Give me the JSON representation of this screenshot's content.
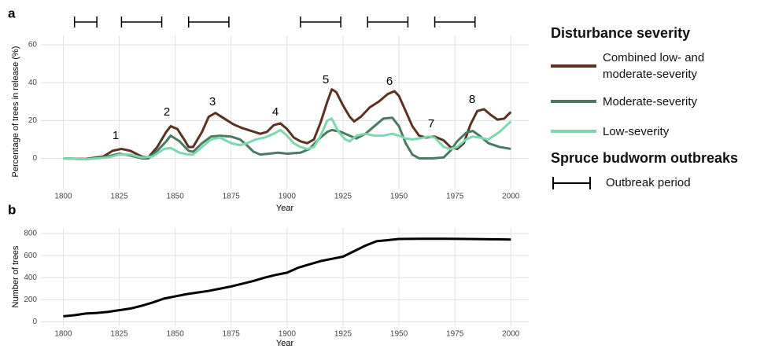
{
  "chart_data": [
    {
      "type": "line",
      "panel": "a",
      "x_label": "Year",
      "y_label": "Percentage of trees in release (%)",
      "xlim": [
        1790,
        2008
      ],
      "xticks": [
        1800,
        1825,
        1850,
        1875,
        1900,
        1925,
        1950,
        1975,
        2000
      ],
      "ylim": [
        -16,
        65
      ],
      "yticks": [
        0,
        20,
        40,
        60
      ],
      "grid": true,
      "legend_title": "Disturbance severity",
      "series": [
        {
          "name": "Combined low- and moderate-severity",
          "color": "#5a3222",
          "x": [
            1800,
            1810,
            1818,
            1822,
            1826,
            1830,
            1835,
            1838,
            1842,
            1846,
            1848,
            1851,
            1854,
            1856,
            1858,
            1862,
            1865,
            1868,
            1872,
            1876,
            1880,
            1884,
            1888,
            1891,
            1894,
            1897,
            1900,
            1903,
            1906,
            1909,
            1912,
            1915,
            1918,
            1920,
            1922,
            1925,
            1928,
            1930,
            1933,
            1937,
            1941,
            1945,
            1948,
            1950,
            1953,
            1956,
            1959,
            1962,
            1966,
            1970,
            1973,
            1976,
            1979,
            1982,
            1985,
            1988,
            1991,
            1994,
            1997,
            2000
          ],
          "values": [
            0,
            -0.3,
            1,
            4,
            5,
            4,
            1,
            0.5,
            6,
            14,
            17,
            15.5,
            10,
            6,
            6,
            14,
            22,
            24,
            21,
            18,
            16,
            14.5,
            13,
            14,
            17.5,
            18.5,
            15.5,
            11,
            9,
            8,
            10,
            19,
            30,
            36.5,
            35,
            28,
            22,
            19.5,
            22,
            27,
            30,
            34,
            35.5,
            33,
            25,
            17,
            12,
            11,
            11.5,
            9.5,
            6,
            5,
            8,
            18,
            25,
            26,
            23,
            20.5,
            21,
            24.5
          ]
        },
        {
          "name": "Moderate-severity",
          "color": "#4a7a62",
          "x": [
            1800,
            1810,
            1818,
            1825,
            1830,
            1835,
            1838,
            1842,
            1846,
            1848,
            1852,
            1856,
            1858,
            1862,
            1866,
            1870,
            1875,
            1879,
            1882,
            1885,
            1888,
            1892,
            1896,
            1900,
            1906,
            1910,
            1914,
            1918,
            1920,
            1924,
            1928,
            1931,
            1935,
            1939,
            1943,
            1947,
            1950,
            1953,
            1956,
            1959,
            1965,
            1970,
            1973,
            1976,
            1980,
            1983,
            1986,
            1990,
            1995,
            2000
          ],
          "values": [
            0,
            -0.5,
            0.5,
            2.5,
            1.5,
            0,
            0,
            4,
            9,
            12,
            9,
            4,
            3.5,
            8,
            11.5,
            12,
            11.5,
            10,
            7,
            3.5,
            2,
            2.5,
            3,
            2.5,
            3,
            5,
            10,
            14,
            15,
            14,
            12,
            10.5,
            13,
            17,
            21,
            21.5,
            17,
            8,
            2,
            0,
            0,
            0.5,
            4,
            9,
            13.5,
            14.5,
            12,
            8,
            6,
            5
          ]
        },
        {
          "name": "Low-severity",
          "color": "#7dd8b0",
          "x": [
            1800,
            1810,
            1820,
            1825,
            1830,
            1835,
            1840,
            1845,
            1848,
            1852,
            1856,
            1858,
            1862,
            1866,
            1870,
            1875,
            1879,
            1882,
            1886,
            1890,
            1894,
            1897,
            1900,
            1903,
            1906,
            1909,
            1912,
            1915,
            1918,
            1920,
            1923,
            1926,
            1928,
            1931,
            1935,
            1939,
            1943,
            1947,
            1950,
            1953,
            1956,
            1959,
            1963,
            1966,
            1970,
            1973,
            1976,
            1980,
            1983,
            1986,
            1990,
            1995,
            2000
          ],
          "values": [
            0,
            -0.5,
            0.5,
            2,
            2,
            0.5,
            1,
            5,
            5.5,
            3,
            2,
            2,
            6,
            10,
            11,
            8,
            7,
            8,
            10,
            11,
            13,
            15,
            12,
            8,
            6,
            5,
            6,
            12,
            20,
            21,
            14,
            10,
            9,
            12,
            13,
            12,
            12,
            13,
            12,
            10.5,
            10,
            10.5,
            11.5,
            11,
            6,
            5,
            6,
            10,
            11.5,
            11,
            10,
            14,
            19.5
          ]
        }
      ],
      "annotations": [
        "1",
        "2",
        "3",
        "4",
        "5",
        "6",
        "7",
        "8"
      ],
      "outbreak_title": "Spruce budworm outbreaks",
      "outbreak_label": "Outbreak period",
      "outbreaks": [
        [
          1805,
          1815
        ],
        [
          1826,
          1844
        ],
        [
          1856,
          1874
        ],
        [
          1906,
          1924
        ],
        [
          1936,
          1954
        ],
        [
          1966,
          1984
        ]
      ]
    },
    {
      "type": "line",
      "panel": "b",
      "x_label": "Year",
      "y_label": "Number of trees",
      "xlim": [
        1790,
        2008
      ],
      "xticks": [
        1800,
        1825,
        1850,
        1875,
        1900,
        1925,
        1950,
        1975,
        2000
      ],
      "ylim": [
        -40,
        850
      ],
      "yticks": [
        0,
        200,
        400,
        600,
        800
      ],
      "grid": true,
      "color": "#000000",
      "x": [
        1800,
        1805,
        1810,
        1815,
        1820,
        1825,
        1830,
        1835,
        1840,
        1845,
        1850,
        1855,
        1860,
        1865,
        1870,
        1875,
        1880,
        1885,
        1890,
        1895,
        1900,
        1905,
        1910,
        1915,
        1920,
        1925,
        1930,
        1935,
        1940,
        1945,
        1950,
        1960,
        1970,
        1980,
        1990,
        2000
      ],
      "values": [
        50,
        60,
        75,
        80,
        90,
        105,
        120,
        145,
        175,
        210,
        230,
        250,
        265,
        280,
        300,
        320,
        345,
        370,
        400,
        425,
        445,
        490,
        520,
        550,
        570,
        590,
        640,
        690,
        730,
        740,
        750,
        752,
        752,
        750,
        748,
        745
      ]
    }
  ]
}
